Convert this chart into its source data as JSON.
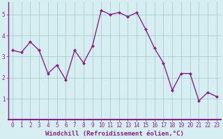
{
  "x": [
    0,
    1,
    2,
    3,
    4,
    5,
    6,
    7,
    8,
    9,
    10,
    11,
    12,
    13,
    14,
    15,
    16,
    17,
    18,
    19,
    20,
    21,
    22,
    23
  ],
  "y": [
    3.3,
    3.2,
    3.7,
    3.3,
    2.2,
    2.6,
    1.9,
    3.3,
    2.7,
    3.5,
    5.2,
    5.0,
    5.1,
    4.9,
    5.1,
    4.3,
    3.4,
    2.7,
    1.4,
    2.2,
    2.2,
    0.9,
    1.3,
    1.1
  ],
  "line_color": "#882288",
  "marker": "D",
  "marker_size": 2.0,
  "bg_color": "#d6eef2",
  "grid_color": "#aacccc",
  "xlabel": "Windchill (Refroidissement éolien,°C)",
  "xlabel_color": "#882288",
  "xlim": [
    -0.5,
    23.5
  ],
  "ylim": [
    0.0,
    5.6
  ],
  "yticks": [
    1,
    2,
    3,
    4,
    5
  ],
  "xticks": [
    0,
    1,
    2,
    3,
    4,
    5,
    6,
    7,
    8,
    9,
    10,
    11,
    12,
    13,
    14,
    15,
    16,
    17,
    18,
    19,
    20,
    21,
    22,
    23
  ],
  "tick_color": "#882288",
  "tick_fontsize": 5.5,
  "xlabel_fontsize": 6.5,
  "linewidth": 1.0,
  "spine_color": "#882288"
}
